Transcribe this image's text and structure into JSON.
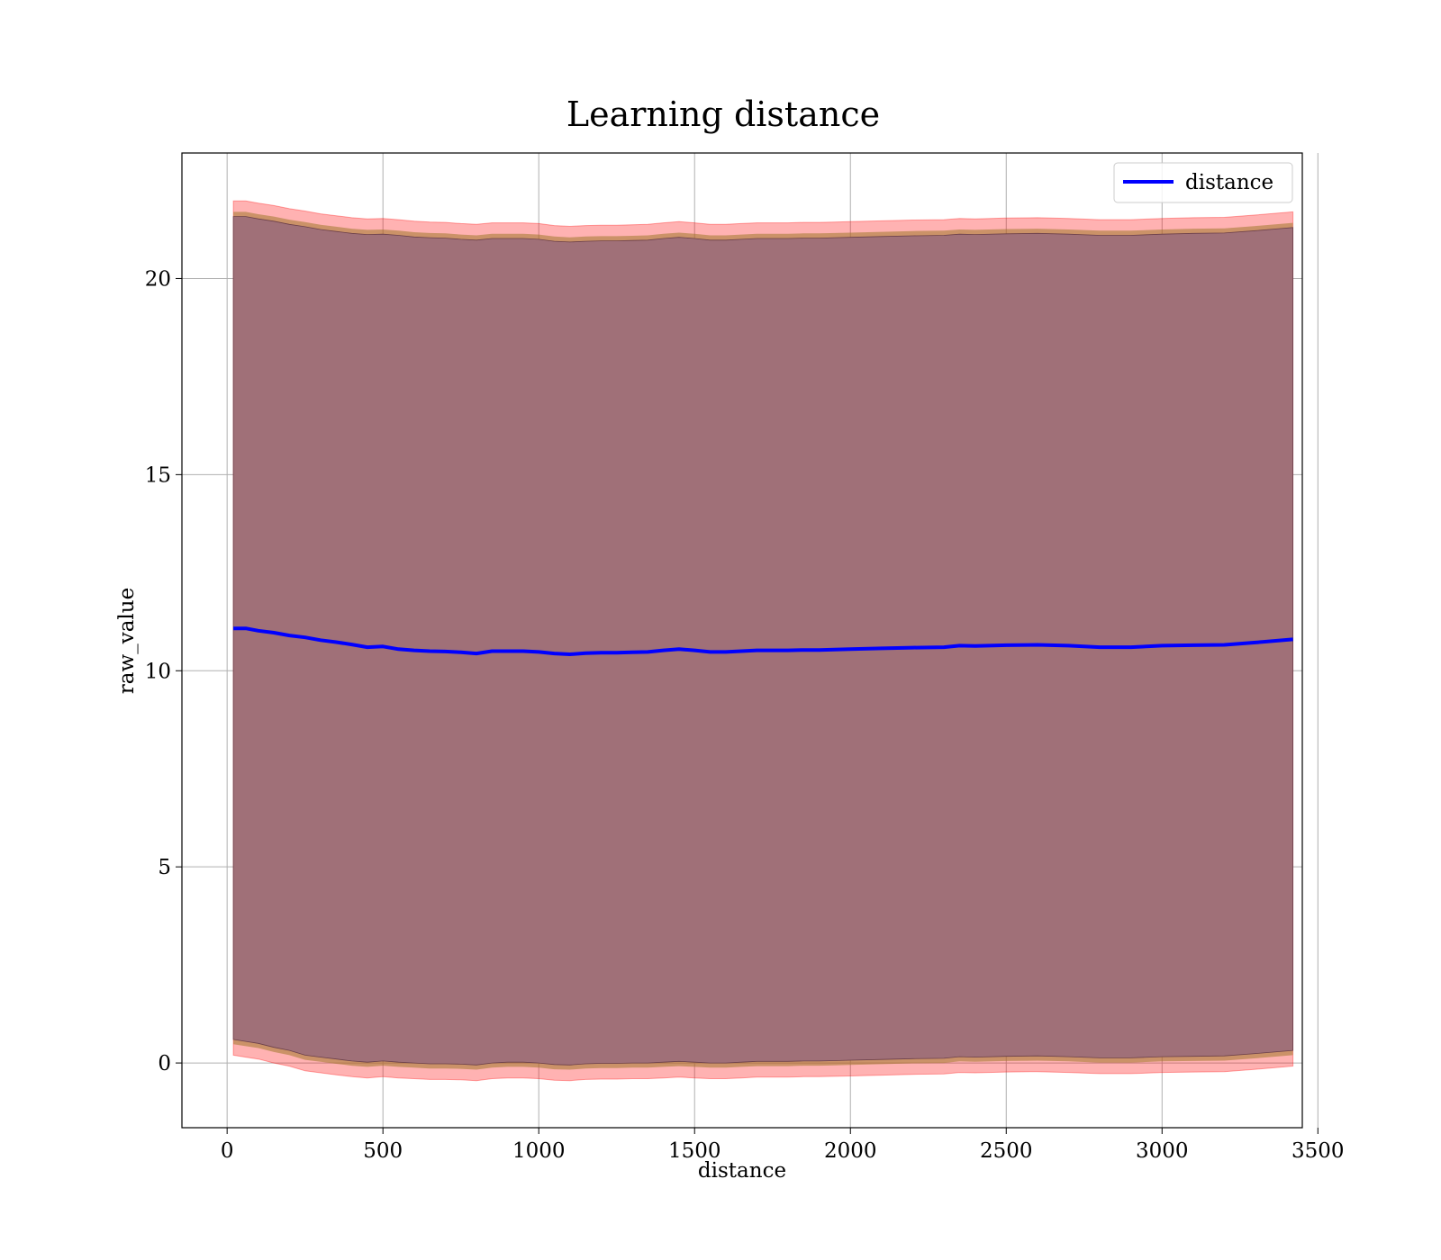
{
  "chart_data": {
    "type": "area",
    "title": "Learning distance",
    "xlabel": "distance",
    "ylabel": "raw_value",
    "xlim": [
      -145,
      3450
    ],
    "ylim": [
      -1.65,
      23.2
    ],
    "xticks": [
      0,
      500,
      1000,
      1500,
      2000,
      2500,
      3000,
      3500
    ],
    "yticks": [
      0,
      5,
      10,
      15,
      20
    ],
    "xtick_labels": [
      "0",
      "500",
      "1000",
      "1500",
      "2000",
      "2500",
      "3000",
      "3500"
    ],
    "ytick_labels": [
      "0",
      "5",
      "10",
      "15",
      "20"
    ],
    "grid": true,
    "legend": {
      "position": "top-right",
      "entries": [
        "distance"
      ]
    },
    "colors": {
      "line": "#0000ff",
      "outer_band": "#ff0000",
      "inner_band": "#4d0017",
      "gold_band": "#a0782c"
    },
    "x": [
      20,
      60,
      100,
      150,
      200,
      250,
      300,
      350,
      400,
      450,
      500,
      550,
      600,
      650,
      700,
      750,
      800,
      850,
      900,
      950,
      1000,
      1050,
      1100,
      1150,
      1200,
      1250,
      1300,
      1350,
      1400,
      1450,
      1500,
      1550,
      1600,
      1650,
      1700,
      1750,
      1800,
      1850,
      1900,
      1950,
      2000,
      2100,
      2200,
      2300,
      2350,
      2400,
      2500,
      2600,
      2700,
      2800,
      2900,
      3000,
      3100,
      3200,
      3300,
      3420
    ],
    "series": [
      {
        "name": "distance",
        "role": "mean",
        "values": [
          11.08,
          11.08,
          11.02,
          10.97,
          10.9,
          10.85,
          10.78,
          10.73,
          10.67,
          10.6,
          10.62,
          10.55,
          10.52,
          10.5,
          10.49,
          10.47,
          10.44,
          10.5,
          10.5,
          10.5,
          10.48,
          10.44,
          10.42,
          10.45,
          10.46,
          10.46,
          10.47,
          10.48,
          10.52,
          10.55,
          10.52,
          10.48,
          10.48,
          10.5,
          10.52,
          10.52,
          10.52,
          10.53,
          10.53,
          10.54,
          10.55,
          10.57,
          10.59,
          10.6,
          10.64,
          10.63,
          10.65,
          10.66,
          10.64,
          10.6,
          10.6,
          10.64,
          10.65,
          10.66,
          10.72,
          10.8
        ]
      },
      {
        "name": "",
        "role": "outer_band",
        "lower": [
          0.2,
          0.15,
          0.1,
          0.0,
          -0.08,
          -0.2,
          -0.25,
          -0.3,
          -0.35,
          -0.38,
          -0.35,
          -0.38,
          -0.4,
          -0.42,
          -0.42,
          -0.43,
          -0.45,
          -0.4,
          -0.38,
          -0.38,
          -0.4,
          -0.44,
          -0.45,
          -0.42,
          -0.41,
          -0.41,
          -0.4,
          -0.4,
          -0.38,
          -0.36,
          -0.38,
          -0.4,
          -0.4,
          -0.38,
          -0.36,
          -0.36,
          -0.36,
          -0.35,
          -0.35,
          -0.34,
          -0.33,
          -0.31,
          -0.29,
          -0.28,
          -0.24,
          -0.25,
          -0.23,
          -0.22,
          -0.24,
          -0.27,
          -0.27,
          -0.24,
          -0.23,
          -0.22,
          -0.16,
          -0.08
        ],
        "upper": [
          21.98,
          21.98,
          21.92,
          21.86,
          21.78,
          21.72,
          21.65,
          21.6,
          21.55,
          21.52,
          21.53,
          21.5,
          21.46,
          21.44,
          21.43,
          21.4,
          21.38,
          21.42,
          21.42,
          21.42,
          21.4,
          21.35,
          21.33,
          21.35,
          21.36,
          21.36,
          21.37,
          21.38,
          21.42,
          21.45,
          21.42,
          21.38,
          21.38,
          21.4,
          21.42,
          21.42,
          21.42,
          21.43,
          21.43,
          21.44,
          21.45,
          21.47,
          21.49,
          21.5,
          21.53,
          21.52,
          21.54,
          21.55,
          21.53,
          21.5,
          21.5,
          21.53,
          21.55,
          21.56,
          21.62,
          21.7
        ]
      },
      {
        "name": "",
        "role": "inner_band",
        "lower": [
          0.6,
          0.55,
          0.5,
          0.4,
          0.32,
          0.2,
          0.15,
          0.1,
          0.05,
          0.02,
          0.05,
          0.02,
          0.0,
          -0.02,
          -0.02,
          -0.03,
          -0.05,
          0.0,
          0.02,
          0.02,
          0.0,
          -0.04,
          -0.05,
          -0.02,
          -0.01,
          -0.01,
          0.0,
          0.0,
          0.02,
          0.04,
          0.02,
          0.0,
          0.0,
          0.02,
          0.04,
          0.04,
          0.04,
          0.05,
          0.05,
          0.06,
          0.07,
          0.09,
          0.11,
          0.12,
          0.16,
          0.15,
          0.17,
          0.18,
          0.16,
          0.13,
          0.13,
          0.16,
          0.17,
          0.18,
          0.24,
          0.32
        ],
        "upper": [
          21.58,
          21.58,
          21.52,
          21.46,
          21.38,
          21.32,
          21.25,
          21.2,
          21.15,
          21.12,
          21.13,
          21.1,
          21.06,
          21.04,
          21.03,
          21.0,
          20.98,
          21.02,
          21.02,
          21.02,
          21.0,
          20.95,
          20.93,
          20.95,
          20.96,
          20.96,
          20.97,
          20.98,
          21.02,
          21.05,
          21.02,
          20.98,
          20.98,
          21.0,
          21.02,
          21.02,
          21.02,
          21.03,
          21.03,
          21.04,
          21.05,
          21.07,
          21.09,
          21.1,
          21.13,
          21.12,
          21.14,
          21.15,
          21.13,
          21.1,
          21.1,
          21.13,
          21.15,
          21.16,
          21.22,
          21.3
        ]
      }
    ]
  }
}
